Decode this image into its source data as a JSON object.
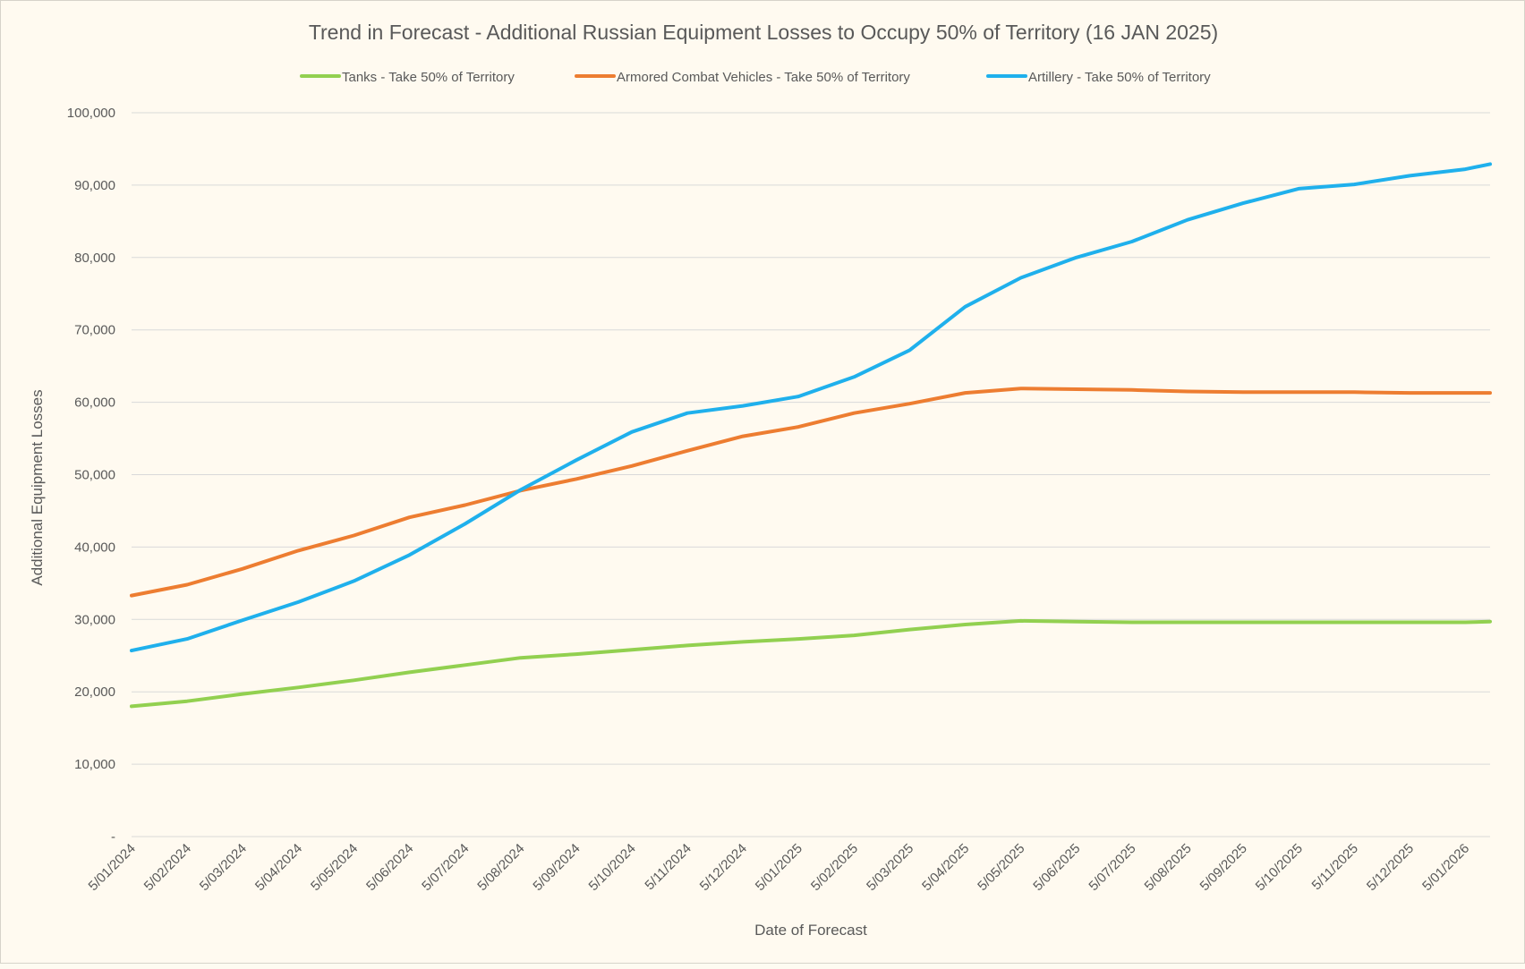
{
  "chart_data": {
    "type": "line",
    "title": "Trend in Forecast - Additional Russian Equipment Losses to Occupy 50% of Territory (16 JAN 2025)",
    "xlabel": "Date of Forecast",
    "ylabel": "Additional Equipment Losses",
    "ylim": [
      0,
      100000
    ],
    "y_ticks": [
      0,
      10000,
      20000,
      30000,
      40000,
      50000,
      60000,
      70000,
      80000,
      90000,
      100000
    ],
    "y_tick_labels": [
      "-",
      "10,000",
      "20,000",
      "30,000",
      "40,000",
      "50,000",
      "60,000",
      "70,000",
      "80,000",
      "90,000",
      "100,000"
    ],
    "x_tick_labels": [
      "5/01/2024",
      "5/02/2024",
      "5/03/2024",
      "5/04/2024",
      "5/05/2024",
      "5/06/2024",
      "5/07/2024",
      "5/08/2024",
      "5/09/2024",
      "5/10/2024",
      "5/11/2024",
      "5/12/2024",
      "5/01/2025",
      "5/02/2025",
      "5/03/2025",
      "5/04/2025",
      "5/05/2025",
      "5/06/2025",
      "5/07/2025",
      "5/08/2025",
      "5/09/2025",
      "5/10/2025",
      "5/11/2025",
      "5/12/2025",
      "5/01/2026"
    ],
    "x_range": [
      "5/01/2024",
      "mid-01/2026"
    ],
    "grid": true,
    "legend_position": "top",
    "series": [
      {
        "name": "Tanks - Take 50% of Territory",
        "color": "#92d050",
        "values": [
          18000,
          18700,
          19700,
          20600,
          21600,
          22700,
          23700,
          24700,
          25200,
          25800,
          26400,
          26900,
          27300,
          27800,
          28600,
          29300,
          29800,
          29700,
          29600,
          29600,
          29600,
          29600,
          29600,
          29600,
          29600,
          29700
        ]
      },
      {
        "name": "Armored Combat Vehicles - Take 50% of Territory",
        "color": "#ed7d31",
        "values": [
          33300,
          34800,
          37000,
          39500,
          41600,
          44100,
          45800,
          47800,
          49400,
          51200,
          53300,
          55300,
          56600,
          58500,
          59800,
          61300,
          61900,
          61800,
          61700,
          61500,
          61400,
          61400,
          61400,
          61300,
          61300,
          61300
        ]
      },
      {
        "name": "Artillery - Take 50% of Territory",
        "color": "#1fb0ec",
        "values": [
          25700,
          27300,
          29900,
          32400,
          35300,
          38900,
          43200,
          47900,
          52000,
          55900,
          58500,
          59500,
          60800,
          63500,
          67200,
          73200,
          77200,
          80000,
          82200,
          85200,
          87500,
          89500,
          90100,
          91300,
          92200,
          92900
        ]
      }
    ]
  }
}
